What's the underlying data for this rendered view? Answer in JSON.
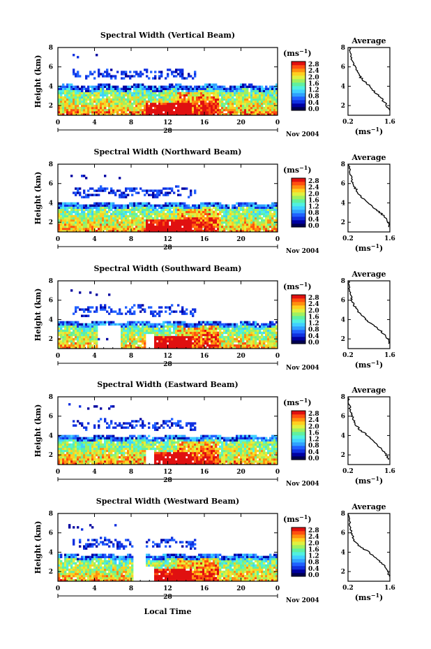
{
  "figure": {
    "x_axis_label": "Local Time",
    "month_label": "Nov 2004",
    "date_label": "28",
    "units_label": "(ms",
    "units_exp": "−1",
    "units_close": ")",
    "avg_title": "Average"
  },
  "colorbar": {
    "tick_labels": [
      "2.8",
      "2.4",
      "2.0",
      "1.6",
      "1.2",
      "0.8",
      "0.4",
      "0.0"
    ],
    "colors": [
      "#000050",
      "#0000a0",
      "#1030e0",
      "#2060ff",
      "#30a0ff",
      "#40d0ff",
      "#50f0e0",
      "#60f0a0",
      "#a0f060",
      "#e0f040",
      "#ffd020",
      "#ff9010",
      "#ff5010",
      "#e01010"
    ]
  },
  "chart_data": [
    {
      "type": "heatmap",
      "title": "Spectral Width (Vertical Beam)",
      "ylabel": "Height (km)",
      "xticks": [
        "0",
        "4",
        "8",
        "12",
        "16",
        "20",
        "0"
      ],
      "yticks": [
        "2",
        "4",
        "6",
        "8"
      ],
      "xlim": [
        0,
        24
      ],
      "ylim": [
        1,
        8
      ],
      "cbar_range": [
        0.0,
        2.8
      ],
      "avg": {
        "xticks": [
          "0.2",
          "1.6"
        ],
        "yticks": [
          "2",
          "4",
          "6",
          "8"
        ],
        "xlim": [
          0.2,
          1.6
        ],
        "ylim": [
          1,
          8
        ],
        "profile": [
          [
            1.6,
            1.5
          ],
          [
            1.45,
            2.2
          ],
          [
            1.3,
            2.8
          ],
          [
            1.1,
            3.4
          ],
          [
            0.95,
            4.0
          ],
          [
            0.7,
            4.6
          ],
          [
            0.55,
            5.2
          ],
          [
            0.45,
            5.8
          ],
          [
            0.38,
            6.4
          ],
          [
            0.3,
            7.2
          ],
          [
            0.25,
            8.0
          ]
        ]
      }
    },
    {
      "type": "heatmap",
      "title": "Spectral Width (Northward Beam)",
      "ylabel": "Height (km)",
      "xticks": [
        "0",
        "4",
        "8",
        "12",
        "16",
        "20",
        "0"
      ],
      "yticks": [
        "2",
        "4",
        "6",
        "8"
      ],
      "xlim": [
        0,
        24
      ],
      "ylim": [
        1,
        8
      ],
      "cbar_range": [
        0.0,
        2.8
      ],
      "avg": {
        "xticks": [
          "0.2",
          "1.6"
        ],
        "yticks": [
          "2",
          "4",
          "6",
          "8"
        ],
        "xlim": [
          0.2,
          1.6
        ],
        "ylim": [
          1,
          8
        ],
        "profile": [
          [
            1.6,
            1.5
          ],
          [
            1.5,
            2.2
          ],
          [
            1.35,
            2.8
          ],
          [
            1.1,
            3.4
          ],
          [
            0.9,
            4.0
          ],
          [
            0.65,
            4.6
          ],
          [
            0.5,
            5.2
          ],
          [
            0.4,
            5.8
          ],
          [
            0.32,
            6.4
          ],
          [
            0.27,
            7.2
          ],
          [
            0.22,
            8.0
          ]
        ]
      }
    },
    {
      "type": "heatmap",
      "title": "Spectral Width (Southward Beam)",
      "ylabel": "Height (km)",
      "xticks": [
        "0",
        "4",
        "8",
        "12",
        "16",
        "20",
        "0"
      ],
      "yticks": [
        "2",
        "4",
        "6",
        "8"
      ],
      "xlim": [
        0,
        24
      ],
      "ylim": [
        1,
        8
      ],
      "cbar_range": [
        0.0,
        2.8
      ],
      "avg": {
        "xticks": [
          "0.2",
          "1.6"
        ],
        "yticks": [
          "2",
          "4",
          "6",
          "8"
        ],
        "xlim": [
          0.2,
          1.6
        ],
        "ylim": [
          1,
          8
        ],
        "profile": [
          [
            1.6,
            1.5
          ],
          [
            1.5,
            2.2
          ],
          [
            1.3,
            2.8
          ],
          [
            1.05,
            3.4
          ],
          [
            0.8,
            4.0
          ],
          [
            0.6,
            4.6
          ],
          [
            0.45,
            5.2
          ],
          [
            0.35,
            5.8
          ],
          [
            0.3,
            6.4
          ],
          [
            0.25,
            7.2
          ],
          [
            0.22,
            8.0
          ]
        ]
      }
    },
    {
      "type": "heatmap",
      "title": "Spectral Width (Eastward Beam)",
      "ylabel": "Height (km)",
      "xticks": [
        "0",
        "4",
        "8",
        "12",
        "16",
        "20",
        "0"
      ],
      "yticks": [
        "2",
        "4",
        "6",
        "8"
      ],
      "xlim": [
        0,
        24
      ],
      "ylim": [
        1,
        8
      ],
      "cbar_range": [
        0.0,
        2.8
      ],
      "avg": {
        "xticks": [
          "0.2",
          "1.6"
        ],
        "yticks": [
          "2",
          "4",
          "6",
          "8"
        ],
        "xlim": [
          0.2,
          1.6
        ],
        "ylim": [
          1,
          8
        ],
        "profile": [
          [
            1.55,
            1.5
          ],
          [
            1.45,
            2.2
          ],
          [
            1.25,
            2.8
          ],
          [
            1.05,
            3.4
          ],
          [
            0.85,
            4.0
          ],
          [
            0.6,
            4.6
          ],
          [
            0.45,
            5.2
          ],
          [
            0.35,
            5.8
          ],
          [
            0.3,
            6.4
          ],
          [
            0.25,
            7.2
          ],
          [
            0.22,
            8.0
          ]
        ]
      }
    },
    {
      "type": "heatmap",
      "title": "Spectral Width (Westward Beam)",
      "ylabel": "Height (km)",
      "xticks": [
        "0",
        "4",
        "8",
        "12",
        "16",
        "20",
        "0"
      ],
      "yticks": [
        "2",
        "4",
        "6",
        "8"
      ],
      "xlim": [
        0,
        24
      ],
      "ylim": [
        1,
        8
      ],
      "cbar_range": [
        0.0,
        2.8
      ],
      "avg": {
        "xticks": [
          "0.2",
          "1.6"
        ],
        "yticks": [
          "2",
          "4",
          "6",
          "8"
        ],
        "xlim": [
          0.2,
          1.6
        ],
        "ylim": [
          1,
          8
        ],
        "profile": [
          [
            1.6,
            1.5
          ],
          [
            1.5,
            2.2
          ],
          [
            1.35,
            2.8
          ],
          [
            1.15,
            3.4
          ],
          [
            0.9,
            4.0
          ],
          [
            0.6,
            4.6
          ],
          [
            0.4,
            5.2
          ],
          [
            0.35,
            5.8
          ],
          [
            0.3,
            6.4
          ],
          [
            0.25,
            7.2
          ],
          [
            0.22,
            8.0
          ]
        ]
      }
    }
  ]
}
